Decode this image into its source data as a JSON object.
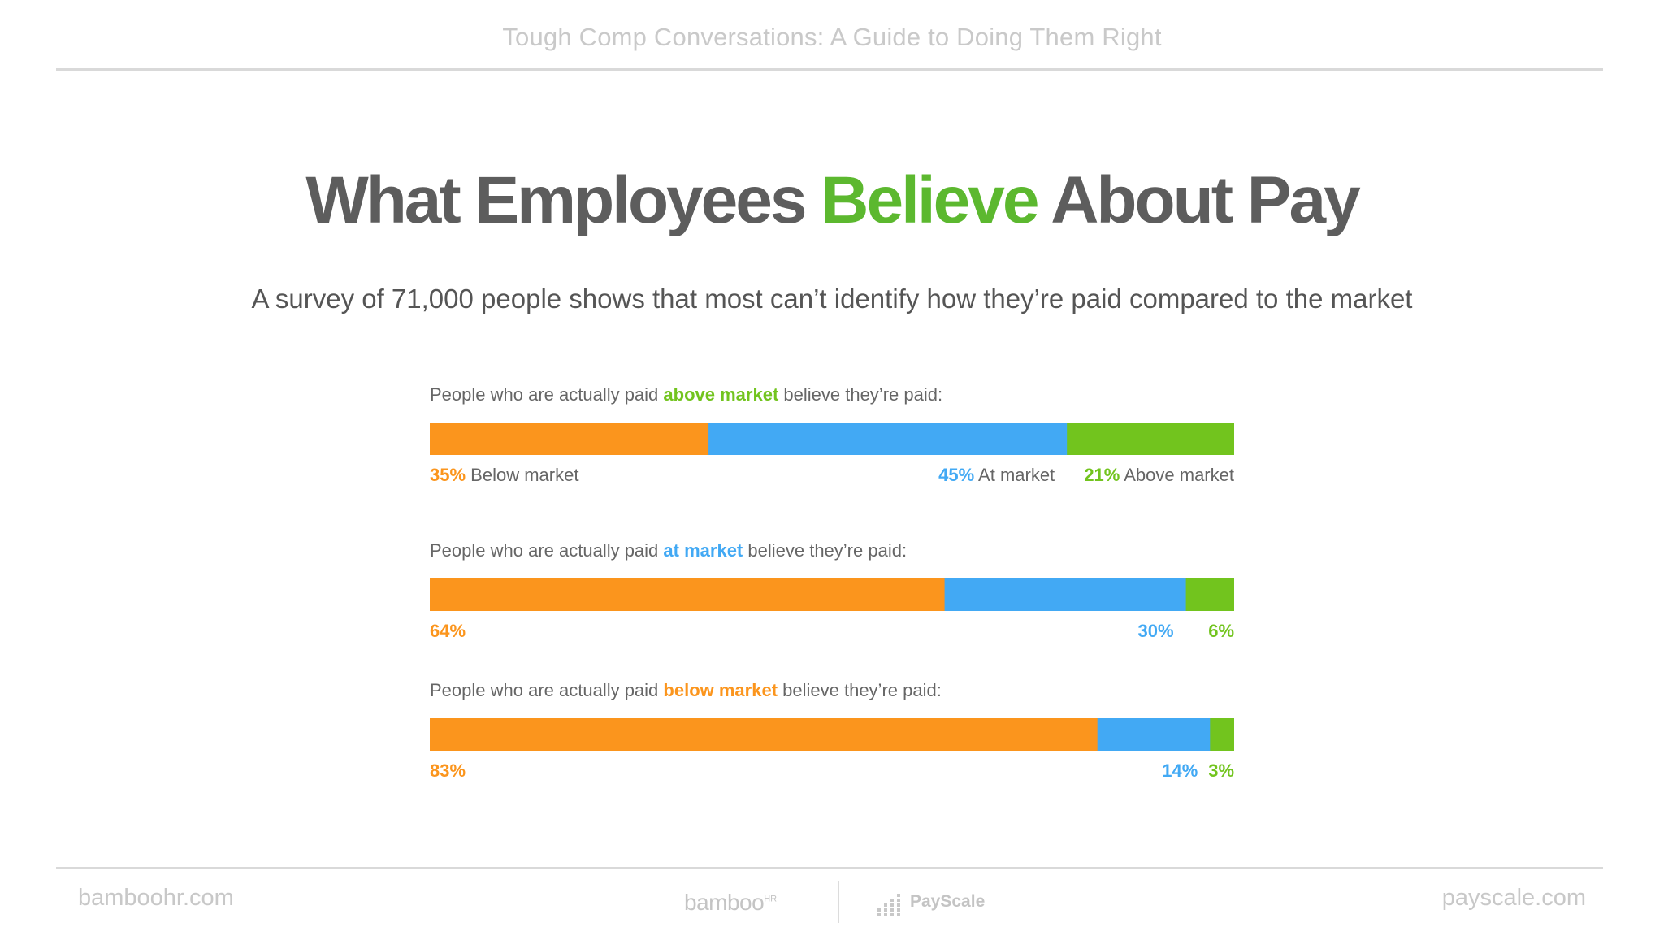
{
  "header": {
    "title": "Tough Comp Conversations: A Guide to Doing Them Right"
  },
  "slide": {
    "title_part1": "What Employees ",
    "title_accent": "Believe",
    "title_part2": " About Pay",
    "subtitle": "A survey of 71,000 people shows that most can’t identify how they’re paid compared to the market"
  },
  "colors": {
    "below": "#fb951d",
    "at": "#42a9f4",
    "above": "#72c41e",
    "title_accent": "#5cb82f",
    "text": "#5d5d5d"
  },
  "chart_data": {
    "type": "bar",
    "stacked": true,
    "orientation": "horizontal",
    "series": [
      {
        "name": "Below market",
        "values": [
          35,
          64,
          83
        ]
      },
      {
        "name": "At market",
        "values": [
          45,
          30,
          14
        ]
      },
      {
        "name": "Above market",
        "values": [
          21,
          6,
          3
        ]
      }
    ],
    "groups": [
      {
        "label_prefix": "People who are actually paid ",
        "label_highlight": "above market",
        "highlight_color": "#72c41e",
        "label_suffix": " believe they’re paid:",
        "values": [
          35,
          45,
          21
        ],
        "value_labels": [
          "35%",
          "45%",
          "21%"
        ],
        "category_labels": [
          "Below market",
          "At market",
          "Above market"
        ]
      },
      {
        "label_prefix": "People who are actually paid ",
        "label_highlight": "at market",
        "highlight_color": "#42a9f4",
        "label_suffix": " believe they’re paid:",
        "values": [
          64,
          30,
          6
        ],
        "value_labels": [
          "64%",
          "30%",
          "6%"
        ],
        "category_labels": [
          "",
          "",
          ""
        ]
      },
      {
        "label_prefix": "People who are actually paid ",
        "label_highlight": "below market",
        "highlight_color": "#fb951d",
        "label_suffix": " believe they’re paid:",
        "values": [
          83,
          14,
          3
        ],
        "value_labels": [
          "83%",
          "14%",
          "3%"
        ],
        "category_labels": [
          "",
          "",
          ""
        ]
      }
    ]
  },
  "footer": {
    "left": "bamboohr.com",
    "right": "payscale.com",
    "logo_bamboo": "bamboo",
    "logo_bamboo_suffix": "HR",
    "logo_payscale": "PayScale"
  }
}
